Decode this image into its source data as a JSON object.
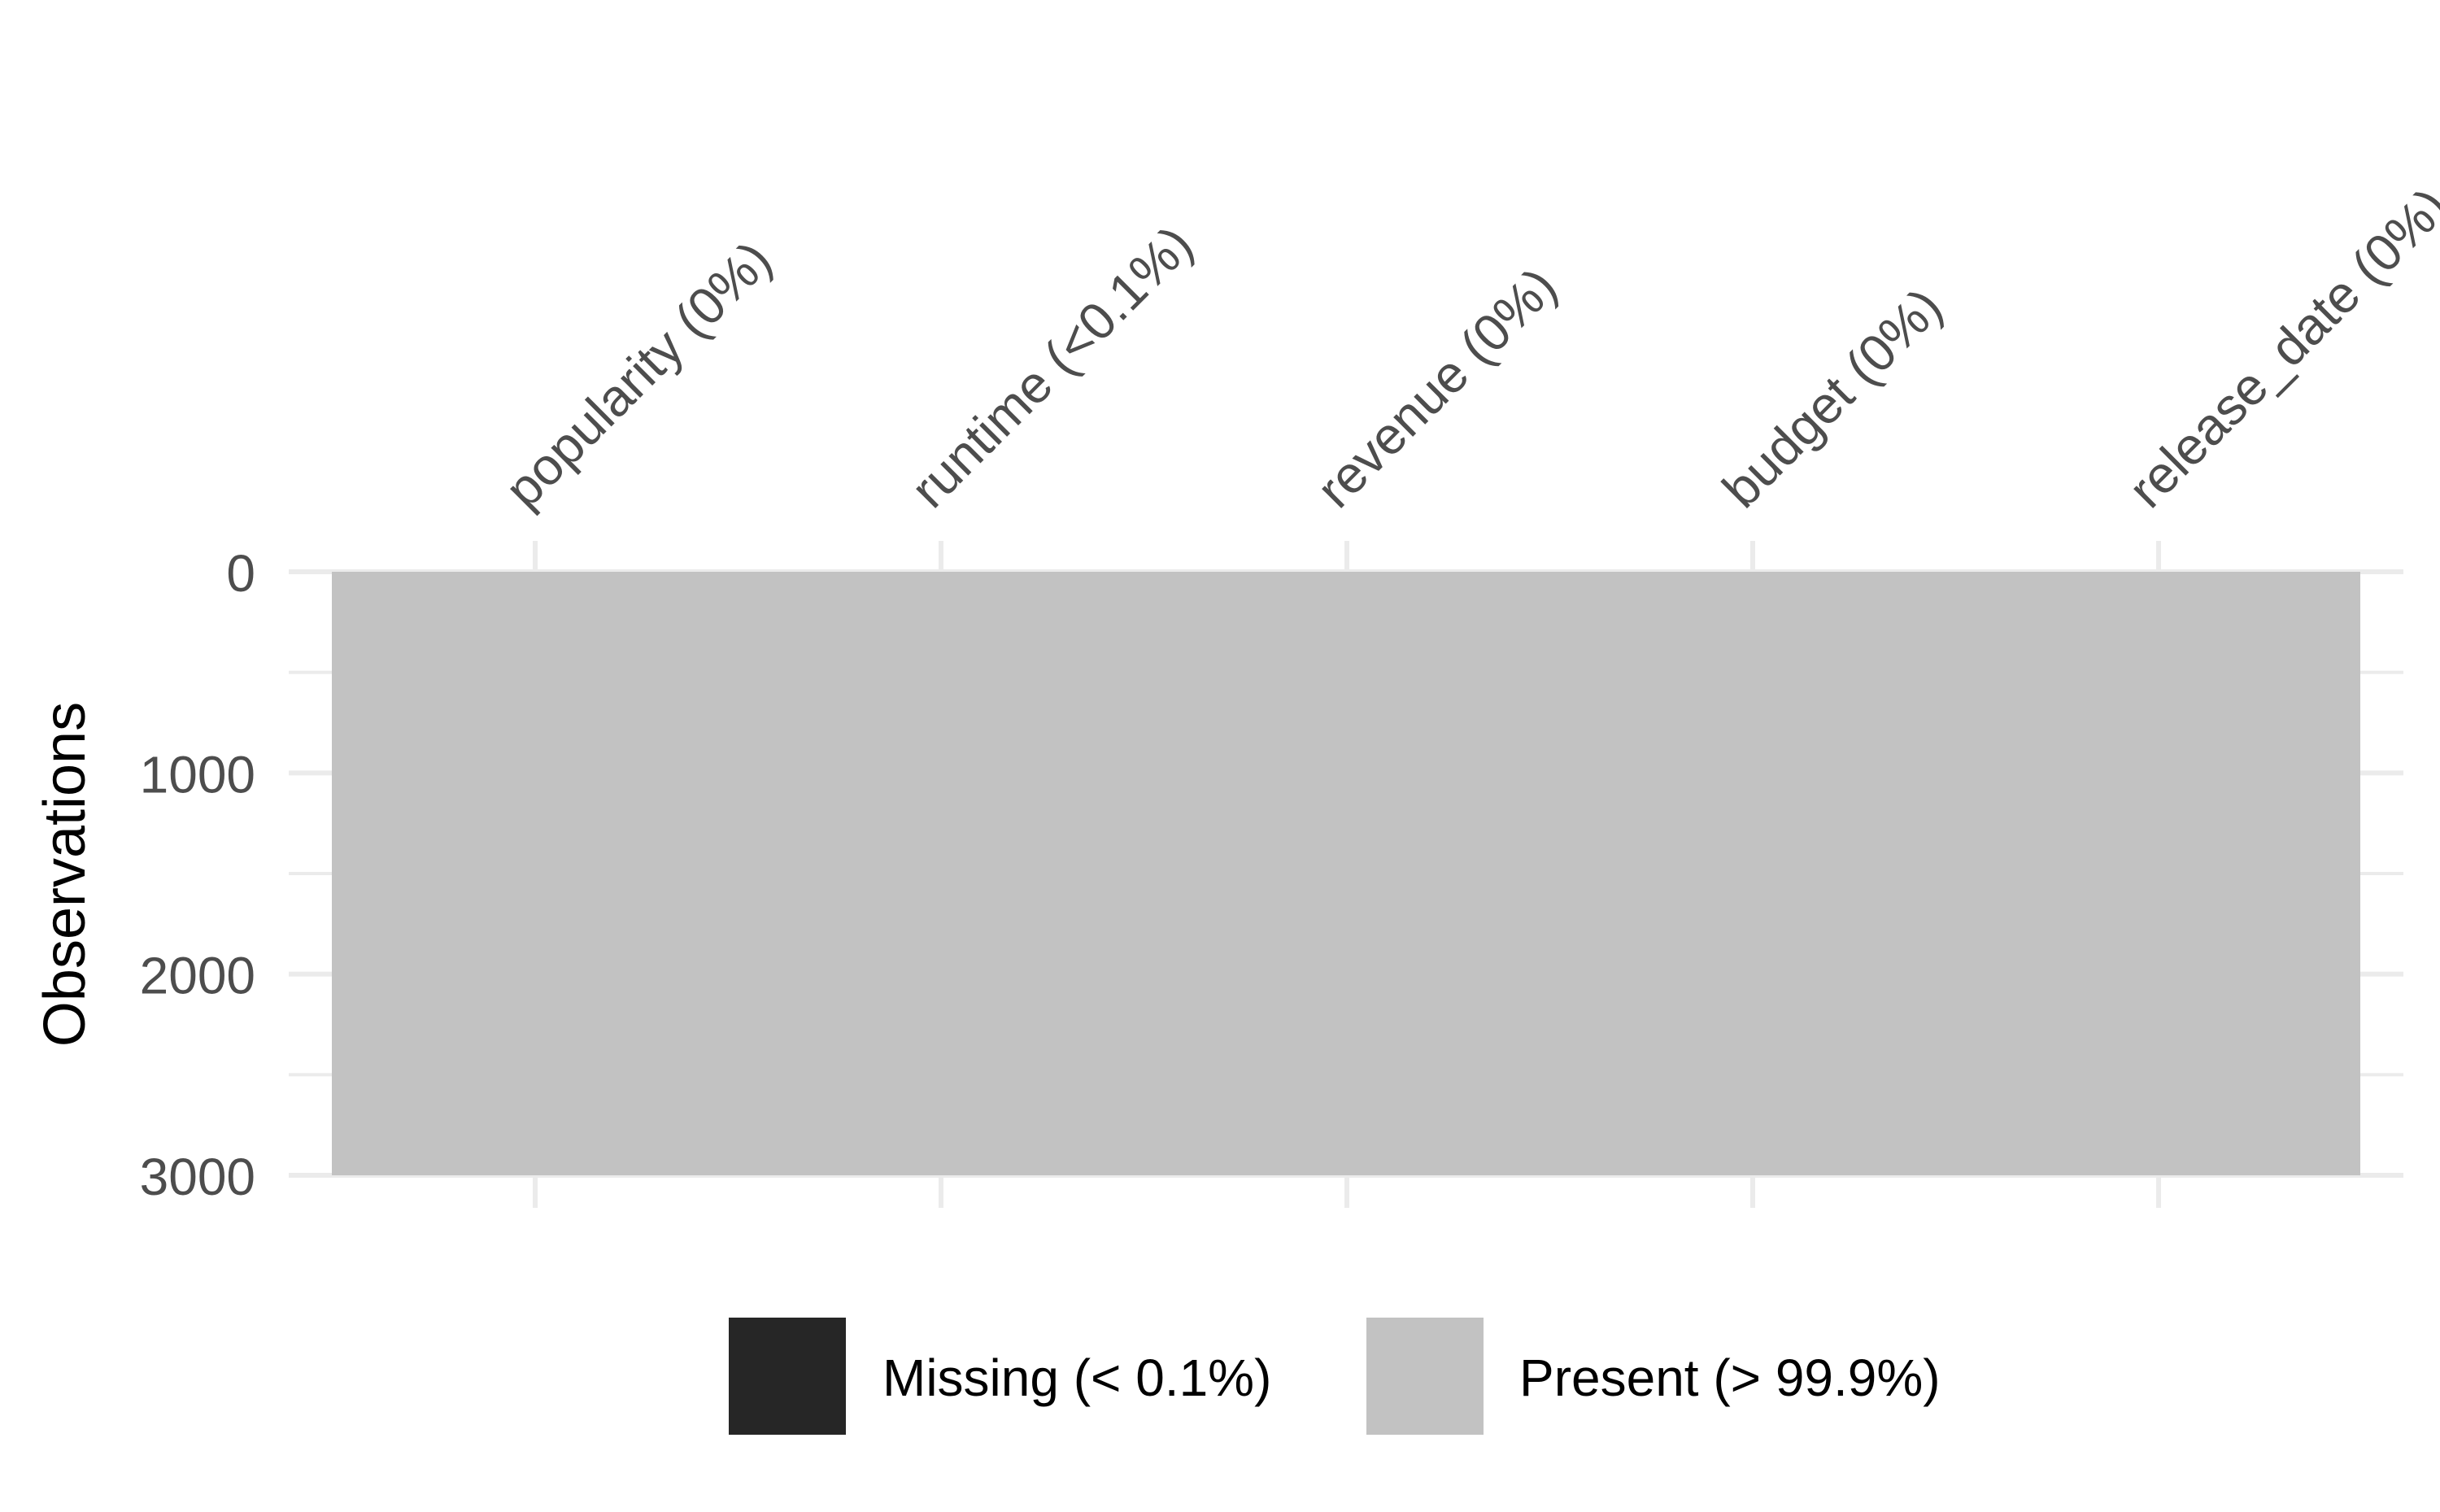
{
  "chart_data": {
    "type": "heatmap",
    "title": "",
    "xlabel": "",
    "ylabel": "Observations",
    "variables": [
      "popularity (0%)",
      "runtime (<0.1%)",
      "revenue (0%)",
      "budget (0%)",
      "release_date (0%)"
    ],
    "ylim": [
      0,
      3000
    ],
    "y_ticks": [
      0,
      1000,
      2000,
      3000
    ],
    "n_observations": 3000,
    "missing_cells": [],
    "legend": {
      "position": "bottom",
      "entries": [
        {
          "label": "Missing (< 0.1%)",
          "color": "#262626"
        },
        {
          "label": "Present (> 99.9%)",
          "color": "#c2c2c2"
        }
      ]
    },
    "grid": true,
    "colors": {
      "present": "#c2c2c2",
      "missing": "#262626",
      "grid": "#ebebeb",
      "text": "#4d4d4d",
      "title_text": "#000000"
    }
  }
}
